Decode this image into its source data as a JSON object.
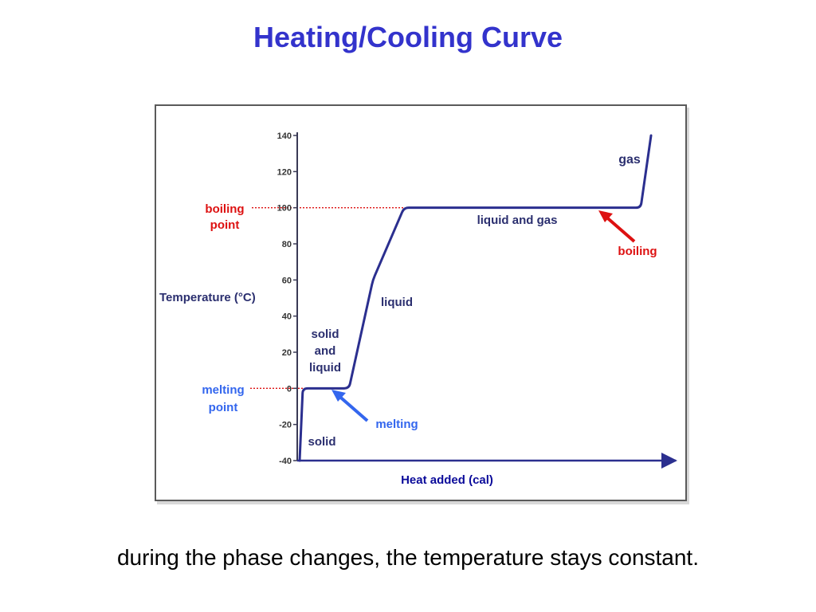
{
  "slide": {
    "title": "Heating/Cooling Curve",
    "caption": "during the phase changes, the temperature stays constant."
  },
  "chart_data": {
    "type": "line",
    "title": "",
    "xlabel": "Heat added (cal)",
    "ylabel": "Temperature (°C)",
    "ylim": [
      -40,
      140
    ],
    "yticks": [
      "-40",
      "-20",
      "0",
      "20",
      "40",
      "60",
      "80",
      "100",
      "120",
      "140"
    ],
    "grid": false,
    "colors": {
      "curve": "#2b2f8f",
      "axis": "#3a3a55",
      "boiling": "#dd1111",
      "melting": "#3366ee",
      "label_dark": "#2b2f6f",
      "xlabel": "#0b0b9a"
    },
    "series": [
      {
        "x": [
          0,
          4,
          27,
          62,
          92,
          131,
          408,
          428,
          441
        ],
        "y": [
          -40,
          0,
          0,
          0,
          60,
          100,
          100,
          100,
          140
        ]
      }
    ],
    "phase_labels": {
      "solid": "solid",
      "solid_liquid": [
        "solid",
        "and",
        "liquid"
      ],
      "liquid": "liquid",
      "liquid_gas": "liquid and gas",
      "gas": "gas"
    },
    "annotations": {
      "boiling_point": [
        "boiling",
        "point"
      ],
      "melting_point": [
        "melting",
        "point"
      ],
      "boiling": "boiling",
      "melting": "melting"
    }
  }
}
